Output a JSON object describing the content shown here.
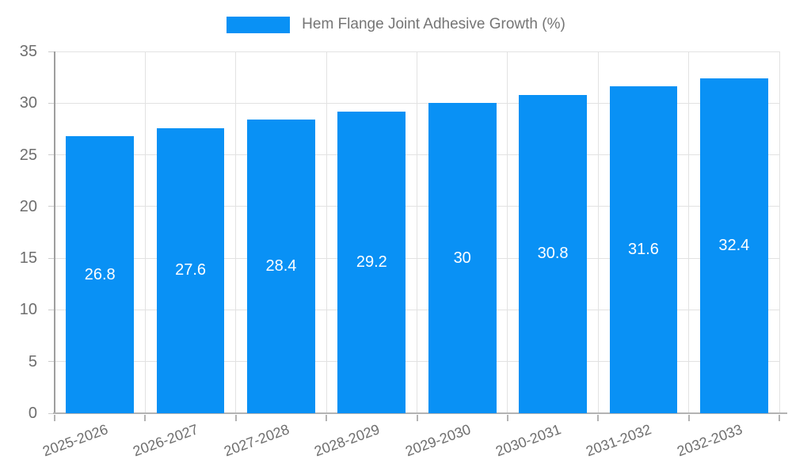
{
  "legend": {
    "label": "Hem Flange Joint Adhesive Growth (%)"
  },
  "chart_data": {
    "type": "bar",
    "title": "Hem Flange Joint Adhesive Growth (%)",
    "categories": [
      "2025-2026",
      "2026-2027",
      "2027-2028",
      "2028-2029",
      "2029-2030",
      "2030-2031",
      "2031-2032",
      "2032-2033"
    ],
    "values": [
      26.8,
      27.6,
      28.4,
      29.2,
      30,
      30.8,
      31.6,
      32.4
    ],
    "value_labels": [
      "26.8",
      "27.6",
      "28.4",
      "29.2",
      "30",
      "30.8",
      "31.6",
      "32.4"
    ],
    "xlabel": "",
    "ylabel": "",
    "ylim": [
      0,
      35
    ],
    "yticks": [
      0,
      5,
      10,
      15,
      20,
      25,
      30,
      35
    ],
    "ytick_labels": [
      "0",
      "5",
      "10",
      "15",
      "20",
      "25",
      "30",
      "35"
    ],
    "grid": true,
    "legend_position": "top-center",
    "colors": {
      "bar": "#0991f5",
      "grid": "#e2e2e2",
      "axis": "#9e9e9e",
      "text": "#6e6e6e",
      "legend_text": "#757575",
      "value_label": "#ffffff",
      "background": "#ffffff"
    }
  }
}
